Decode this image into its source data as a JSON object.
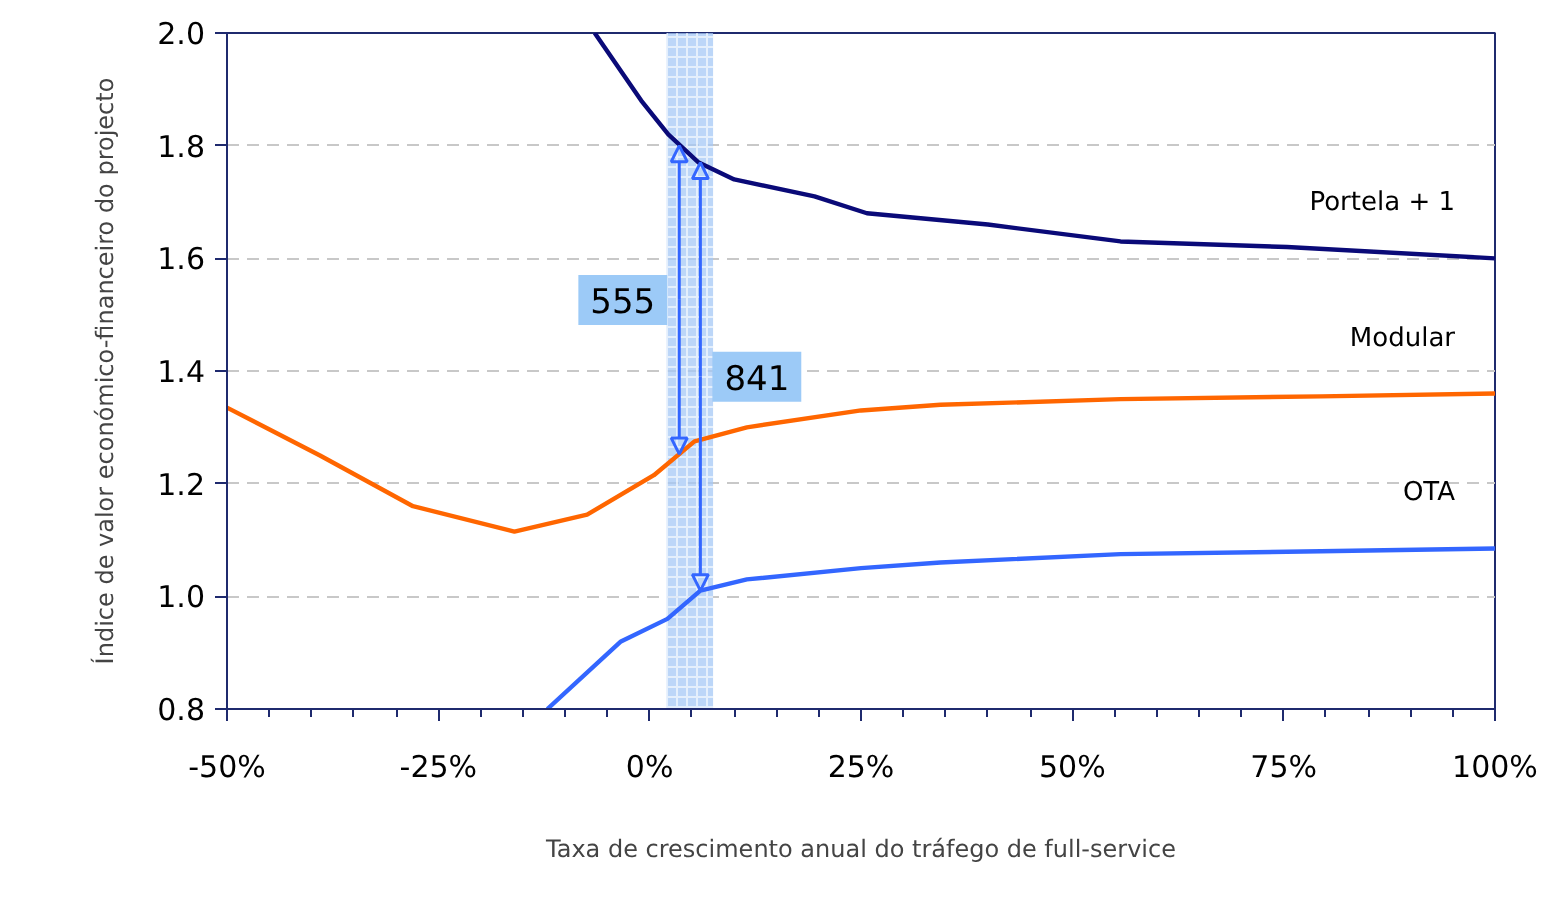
{
  "chart_data": {
    "type": "line",
    "xlabel": "Taxa de crescimento anual do tráfego de full-service",
    "ylabel": "Índice de valor económico-financeiro do projecto",
    "xlim": [
      -50,
      100
    ],
    "ylim": [
      0.8,
      2.0
    ],
    "xticks": [
      {
        "value": -50,
        "label": "-50%"
      },
      {
        "value": -45,
        "label": null
      },
      {
        "value": -40,
        "label": null
      },
      {
        "value": -35,
        "label": null
      },
      {
        "value": -30,
        "label": null
      },
      {
        "value": -25,
        "label": "-25%"
      },
      {
        "value": -20,
        "label": null
      },
      {
        "value": -15,
        "label": null
      },
      {
        "value": -10,
        "label": null
      },
      {
        "value": -5,
        "label": null
      },
      {
        "value": 0,
        "label": "0%"
      },
      {
        "value": 5,
        "label": null
      },
      {
        "value": 10,
        "label": null
      },
      {
        "value": 15,
        "label": null
      },
      {
        "value": 20,
        "label": null
      },
      {
        "value": 25,
        "label": "25%"
      },
      {
        "value": 30,
        "label": null
      },
      {
        "value": 35,
        "label": null
      },
      {
        "value": 40,
        "label": null
      },
      {
        "value": 45,
        "label": null
      },
      {
        "value": 50,
        "label": "50%"
      },
      {
        "value": 55,
        "label": null
      },
      {
        "value": 60,
        "label": null
      },
      {
        "value": 65,
        "label": null
      },
      {
        "value": 70,
        "label": null
      },
      {
        "value": 75,
        "label": "75%"
      },
      {
        "value": 80,
        "label": null
      },
      {
        "value": 85,
        "label": null
      },
      {
        "value": 90,
        "label": null
      },
      {
        "value": 95,
        "label": null
      },
      {
        "value": 100,
        "label": "100%"
      }
    ],
    "yticks": [
      {
        "value": 0.8,
        "label": "0.8"
      },
      {
        "value": 1.0,
        "label": "1.0"
      },
      {
        "value": 1.2,
        "label": "1.2"
      },
      {
        "value": 1.4,
        "label": "1.4"
      },
      {
        "value": 1.6,
        "label": "1.6"
      },
      {
        "value": 1.8,
        "label": "1.8"
      },
      {
        "value": 2.0,
        "label": "2.0"
      }
    ],
    "grid": "y",
    "line_style": "solid",
    "marker": "none",
    "series": [
      {
        "name": "Portela + 1",
        "color": "#0a0a78",
        "x": [
          -6.5,
          -1,
          2.2,
          5.8,
          10,
          19.5,
          25.7,
          40,
          55.7,
          75.4,
          100
        ],
        "values": [
          2.0,
          1.88,
          1.82,
          1.77,
          1.74,
          1.71,
          1.68,
          1.66,
          1.63,
          1.62,
          1.6
        ]
      },
      {
        "name": "Modular",
        "color": "#ff6600",
        "x": [
          -50,
          -39,
          -28,
          -16,
          -7.4,
          0.5,
          5.3,
          11.5,
          25,
          34.4,
          55.7,
          79.4,
          100
        ],
        "values": [
          1.335,
          1.25,
          1.16,
          1.115,
          1.145,
          1.215,
          1.275,
          1.3,
          1.33,
          1.34,
          1.35,
          1.355,
          1.36
        ]
      },
      {
        "name": "OTA",
        "color": "#3366ff",
        "x": [
          -12.1,
          -3.4,
          2.1,
          6,
          11.5,
          25,
          34.4,
          55.7,
          79.4,
          100
        ],
        "values": [
          0.8,
          0.92,
          0.96,
          1.01,
          1.03,
          1.05,
          1.06,
          1.075,
          1.08,
          1.085
        ]
      }
    ],
    "bands": [
      {
        "axis": "x",
        "from": 2,
        "to": 7.5,
        "color": "#a6c8f5"
      }
    ],
    "annotations": [
      {
        "text": "555",
        "x": 3.5,
        "y": 1.8
      },
      {
        "text": "841",
        "x": 6,
        "y": 1.77
      }
    ]
  }
}
